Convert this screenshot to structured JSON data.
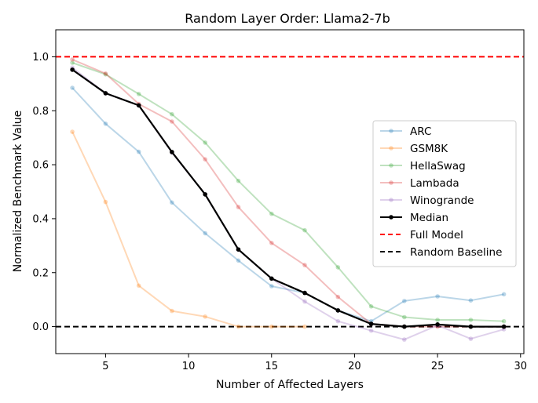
{
  "chart_data": {
    "type": "line",
    "title": "Random Layer Order: Llama2-7b",
    "xlabel": "Number of Affected Layers",
    "ylabel": "Normalized Benchmark Value",
    "xlim": [
      2,
      30.2
    ],
    "ylim": [
      -0.1,
      1.1
    ],
    "xticks": [
      5,
      10,
      15,
      20,
      25,
      30
    ],
    "yticks": [
      0.0,
      0.2,
      0.4,
      0.6,
      0.8,
      1.0
    ],
    "ytick_labels": [
      "0.0",
      "0.2",
      "0.4",
      "0.6",
      "0.8",
      "1.0"
    ],
    "x": [
      3,
      5,
      7,
      9,
      11,
      13,
      15,
      17,
      19,
      21,
      23,
      25,
      27,
      29
    ],
    "legend_position": "center-right",
    "series": [
      {
        "name": "ARC",
        "color": "#1f77b4",
        "alpha": 0.3,
        "values": [
          0.885,
          0.752,
          0.648,
          0.46,
          0.346,
          0.245,
          0.15,
          0.125,
          0.06,
          0.02,
          0.095,
          0.112,
          0.097,
          0.12
        ]
      },
      {
        "name": "GSM8K",
        "color": "#ff7f0e",
        "alpha": 0.3,
        "values": [
          0.722,
          0.462,
          0.152,
          0.058,
          0.037,
          0.0,
          0.0,
          0.0,
          null,
          null,
          null,
          null,
          null,
          null
        ]
      },
      {
        "name": "HellaSwag",
        "color": "#2ca02c",
        "alpha": 0.3,
        "values": [
          0.978,
          0.935,
          0.862,
          0.787,
          0.682,
          0.54,
          0.418,
          0.357,
          0.22,
          0.075,
          0.035,
          0.025,
          0.025,
          0.02
        ]
      },
      {
        "name": "Lambada",
        "color": "#d62728",
        "alpha": 0.3,
        "values": [
          0.99,
          0.938,
          0.825,
          0.76,
          0.62,
          0.443,
          0.31,
          0.228,
          0.11,
          0.01,
          0.0,
          0.0,
          0.0,
          0.0
        ]
      },
      {
        "name": "Winogrande",
        "color": "#9467bd",
        "alpha": 0.3,
        "values": [
          0.96,
          0.865,
          0.82,
          0.645,
          0.49,
          0.285,
          0.178,
          0.093,
          0.02,
          -0.015,
          -0.048,
          0.005,
          -0.045,
          -0.01
        ]
      },
      {
        "name": "Median",
        "color": "#000000",
        "alpha": 1.0,
        "values": [
          0.952,
          0.865,
          0.82,
          0.647,
          0.49,
          0.286,
          0.178,
          0.125,
          0.06,
          0.01,
          0.0,
          0.008,
          0.0,
          0.0
        ]
      }
    ],
    "reference_lines": [
      {
        "name": "Full Model",
        "y": 1.0,
        "color": "#ff0000",
        "style": "dashed"
      },
      {
        "name": "Random Baseline",
        "y": 0.0,
        "color": "#000000",
        "style": "dashed"
      }
    ]
  }
}
